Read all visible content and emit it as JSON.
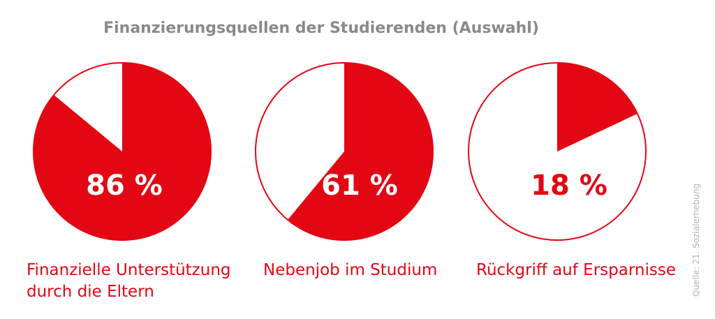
{
  "title": "Finanzierungsquellen der Studierenden (Auswahl)",
  "source_note": "Quelle: 21. Sozialerhebung",
  "colors": {
    "accent": "#e30613",
    "title": "#8a8a8a",
    "source": "#b3b3b3",
    "background": "#ffffff"
  },
  "chart_data": [
    {
      "type": "pie",
      "title": "Finanzielle Unterstützung durch die Eltern",
      "categories": [
        "Finanzielle Unterstützung durch die Eltern",
        ""
      ],
      "values": [
        86,
        14
      ],
      "value_label": "86 %",
      "label_lines": [
        "Finanzielle Unterstützung",
        "durch die Eltern"
      ]
    },
    {
      "type": "pie",
      "title": "Nebenjob im Studium",
      "categories": [
        "Nebenjob im Studium",
        ""
      ],
      "values": [
        61,
        39
      ],
      "value_label": "61 %",
      "label_lines": [
        "Nebenjob im Studium"
      ]
    },
    {
      "type": "pie",
      "title": "Rückgriff auf Ersparnisse",
      "categories": [
        "Rückgriff auf Ersparnisse",
        ""
      ],
      "values": [
        18,
        82
      ],
      "value_label": "18 %",
      "label_lines": [
        "Rückgriff auf Ersparnisse"
      ]
    }
  ]
}
